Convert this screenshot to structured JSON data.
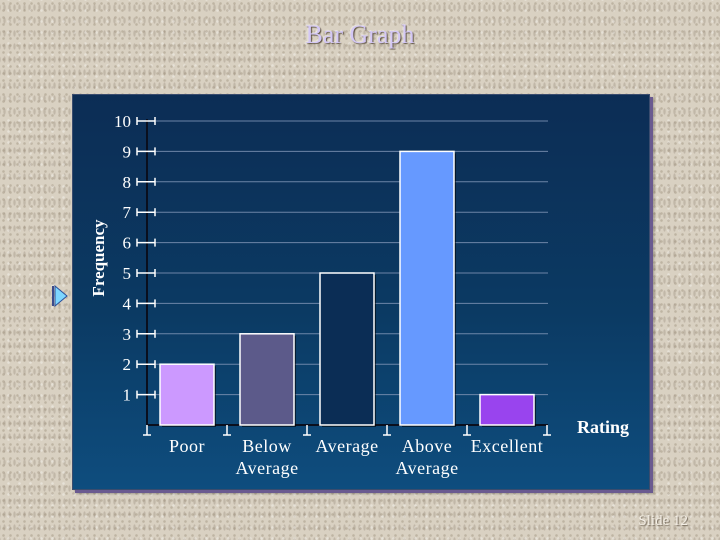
{
  "slide": {
    "title": "Bar Graph",
    "number_label": "Slide 12",
    "marker_icon": "play-triangle-icon"
  },
  "colors": {
    "panel_top": "#0c2d55",
    "panel_bottom": "#0e4d7e",
    "title": "#d3c7f5"
  },
  "chart_data": {
    "type": "bar",
    "categories": [
      "Poor",
      "Below Average",
      "Average",
      "Above Average",
      "Excellent"
    ],
    "category_lines": [
      [
        "Poor"
      ],
      [
        "Below",
        "Average"
      ],
      [
        "Average"
      ],
      [
        "Above",
        "Average"
      ],
      [
        "Excellent"
      ]
    ],
    "values": [
      2,
      3,
      5,
      9,
      1
    ],
    "bar_colors": [
      "#cc99ff",
      "#5c5a8a",
      "#0b2d55",
      "#6699ff",
      "#9944ee"
    ],
    "xlabel": "Rating",
    "ylabel": "Frequency",
    "ylim": [
      0,
      10
    ],
    "yticks": [
      1,
      2,
      3,
      4,
      5,
      6,
      7,
      8,
      9,
      10
    ],
    "grid": true
  }
}
